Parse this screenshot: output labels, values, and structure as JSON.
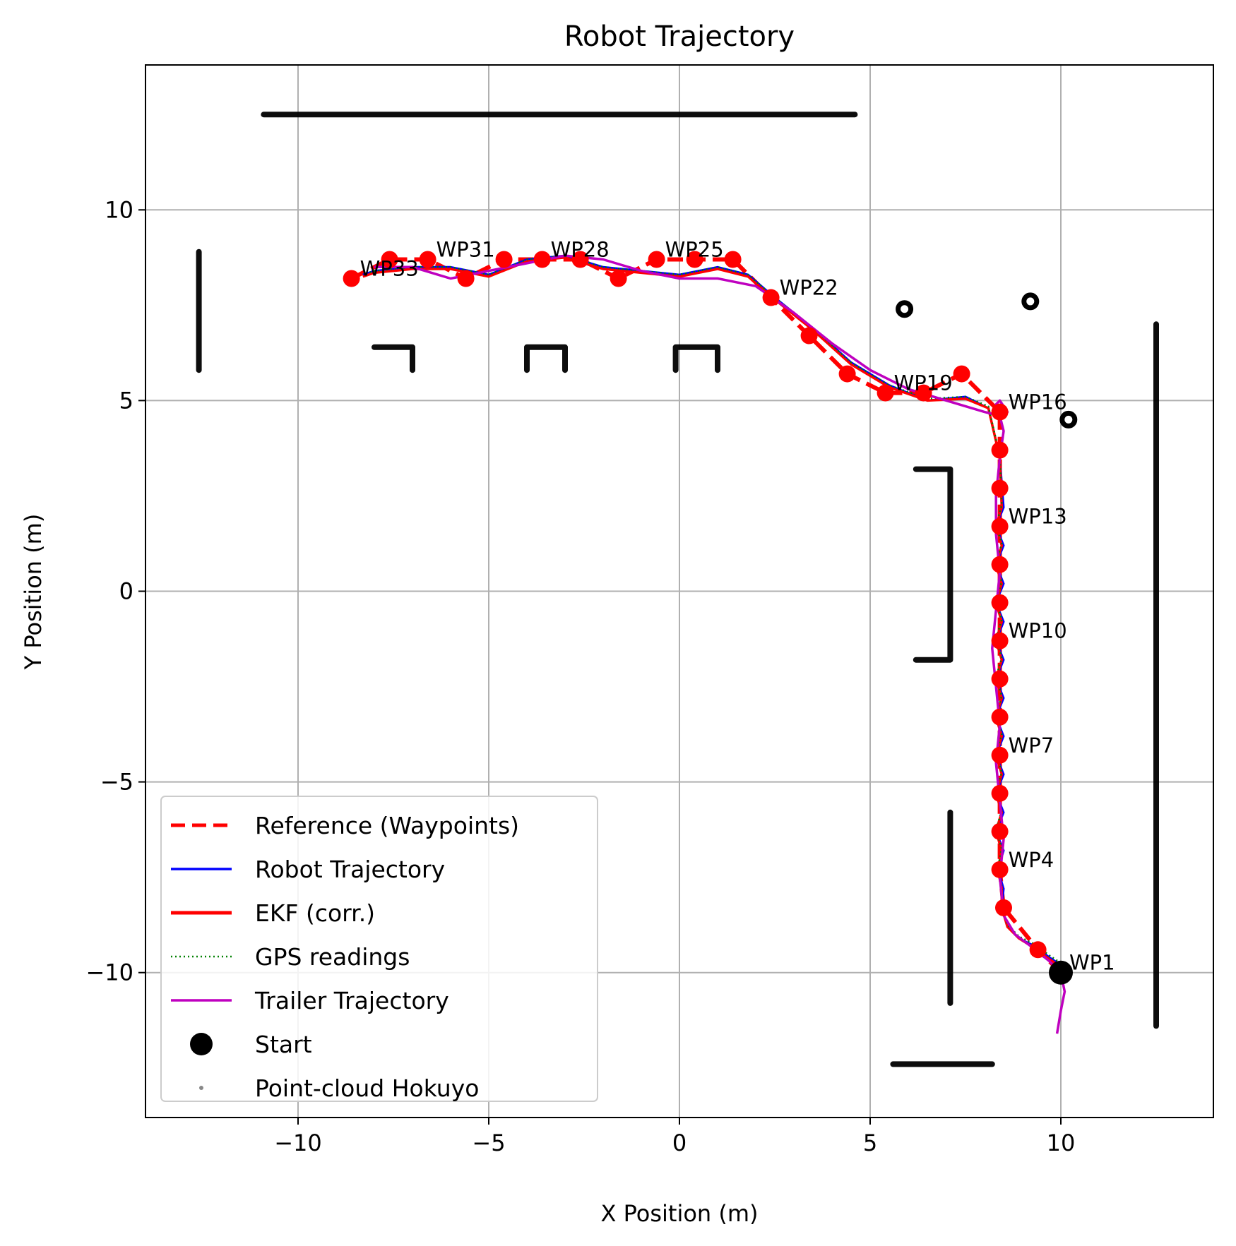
{
  "chart_data": {
    "type": "line",
    "title": "Robot Trajectory",
    "xlabel": "X Position (m)",
    "ylabel": "Y Position (m)",
    "xlim": [
      -14,
      14
    ],
    "ylim": [
      -13.8,
      13.8
    ],
    "xticks": [
      -10,
      -5,
      0,
      5,
      10
    ],
    "yticks": [
      -10,
      -5,
      0,
      5,
      10
    ],
    "xtick_labels": [
      "−10",
      "−5",
      "0",
      "5",
      "10"
    ],
    "ytick_labels": [
      "−10",
      "−5",
      "0",
      "5",
      "10"
    ],
    "grid": true,
    "legend_position": "lower-left",
    "colors": {
      "reference": "#ff0000",
      "robot": "#0000ff",
      "ekf": "#ff0000",
      "gps": "#008000",
      "trailer": "#bf00bf",
      "start": "#000000",
      "cloud": "#000000"
    },
    "waypoints": {
      "x": [
        10.0,
        9.4,
        8.5,
        8.4,
        8.4,
        8.4,
        8.4,
        8.4,
        8.4,
        8.4,
        8.4,
        8.4,
        8.4,
        8.4,
        8.4,
        8.4,
        7.4,
        6.4,
        5.4,
        4.4,
        3.4,
        2.4,
        1.4,
        0.4,
        -0.6,
        -1.6,
        -2.6,
        -3.6,
        -4.6,
        -5.6,
        -6.6,
        -7.6,
        -8.6
      ],
      "y": [
        -10.0,
        -9.4,
        -8.3,
        -7.3,
        -6.3,
        -5.3,
        -4.3,
        -3.3,
        -2.3,
        -1.3,
        -0.3,
        0.7,
        1.7,
        2.7,
        3.7,
        4.7,
        5.7,
        5.2,
        5.2,
        5.7,
        6.7,
        7.7,
        8.7,
        8.7,
        8.7,
        8.2,
        8.7,
        8.7,
        8.7,
        8.2,
        8.7,
        8.7,
        8.2
      ]
    },
    "waypoint_labels": [
      {
        "label": "WP1",
        "x": 10.0,
        "y": -10.0
      },
      {
        "label": "WP4",
        "x": 8.4,
        "y": -7.3
      },
      {
        "label": "WP7",
        "x": 8.4,
        "y": -4.3
      },
      {
        "label": "WP10",
        "x": 8.4,
        "y": -1.3
      },
      {
        "label": "WP13",
        "x": 8.4,
        "y": 1.7
      },
      {
        "label": "WP16",
        "x": 8.4,
        "y": 4.7
      },
      {
        "label": "WP19",
        "x": 5.4,
        "y": 5.2
      },
      {
        "label": "WP22",
        "x": 2.4,
        "y": 7.7
      },
      {
        "label": "WP25",
        "x": -0.6,
        "y": 8.7
      },
      {
        "label": "WP28",
        "x": -3.6,
        "y": 8.7
      },
      {
        "label": "WP31",
        "x": -6.6,
        "y": 8.7
      },
      {
        "label": "WP33",
        "x": -8.6,
        "y": 8.2
      }
    ],
    "series": [
      {
        "name": "Reference (Waypoints)",
        "style": "dashed"
      },
      {
        "name": "Robot Trajectory",
        "style": "solid",
        "x": [
          10.0,
          9.7,
          9.3,
          8.9,
          8.6,
          8.45,
          8.5,
          8.35,
          8.5,
          8.3,
          8.5,
          8.3,
          8.5,
          8.3,
          8.5,
          8.3,
          8.5,
          8.3,
          8.5,
          8.3,
          8.5,
          8.3,
          8.5,
          8.3,
          8.5,
          8.3,
          8.5,
          8.4,
          8.1,
          7.5,
          6.5,
          5.5,
          4.5,
          3.5,
          2.5,
          1.8,
          1.0,
          0.0,
          -1.0,
          -2.0,
          -3.0,
          -4.0,
          -5.0,
          -6.0,
          -7.0,
          -8.0,
          -8.3
        ],
        "y": [
          -9.8,
          -9.6,
          -9.3,
          -9.1,
          -8.8,
          -8.3,
          -7.8,
          -7.3,
          -6.8,
          -6.3,
          -5.8,
          -5.3,
          -4.8,
          -4.3,
          -3.8,
          -3.3,
          -2.8,
          -2.3,
          -1.8,
          -1.3,
          -0.8,
          -0.3,
          0.2,
          0.7,
          1.2,
          1.7,
          2.2,
          3.5,
          4.8,
          5.1,
          5.0,
          5.4,
          6.0,
          6.9,
          7.7,
          8.3,
          8.5,
          8.3,
          8.4,
          8.5,
          8.8,
          8.7,
          8.3,
          8.5,
          8.5,
          8.4,
          8.3
        ]
      },
      {
        "name": "EKF (corr.)",
        "style": "solid",
        "x": [
          10.0,
          9.7,
          9.3,
          8.9,
          8.6,
          8.45,
          8.45,
          8.35,
          8.45,
          8.3,
          8.45,
          8.3,
          8.45,
          8.3,
          8.45,
          8.3,
          8.45,
          8.3,
          8.45,
          8.3,
          8.45,
          8.3,
          8.45,
          8.3,
          8.45,
          8.3,
          8.45,
          8.4,
          8.1,
          7.5,
          6.5,
          5.5,
          4.5,
          3.5,
          2.5,
          1.8,
          1.0,
          0.0,
          -1.0,
          -2.0,
          -3.0,
          -4.0,
          -5.0,
          -6.0,
          -7.0,
          -8.0,
          -8.3
        ],
        "y": [
          -9.85,
          -9.65,
          -9.35,
          -9.1,
          -8.8,
          -8.3,
          -7.8,
          -7.3,
          -6.8,
          -6.3,
          -5.8,
          -5.3,
          -4.8,
          -4.3,
          -3.8,
          -3.3,
          -2.8,
          -2.3,
          -1.8,
          -1.3,
          -0.8,
          -0.3,
          0.2,
          0.7,
          1.2,
          1.7,
          2.2,
          3.5,
          4.8,
          5.05,
          5.0,
          5.35,
          5.95,
          6.85,
          7.65,
          8.25,
          8.45,
          8.25,
          8.35,
          8.45,
          8.75,
          8.65,
          8.25,
          8.45,
          8.45,
          8.35,
          8.25
        ]
      },
      {
        "name": "GPS readings",
        "style": "dotted",
        "x": [
          10.0,
          9.7,
          9.3,
          8.9,
          8.6,
          8.45,
          8.45,
          8.35,
          8.45,
          8.3,
          8.45,
          8.3,
          8.45,
          8.3,
          8.45,
          8.3,
          8.45,
          8.3,
          8.45,
          8.3,
          8.45,
          8.3,
          8.45,
          8.3,
          8.45,
          8.3,
          8.45,
          8.4,
          8.1,
          7.5,
          6.5,
          5.5,
          4.5,
          3.5,
          2.5,
          1.8,
          1.0,
          0.0,
          -1.0,
          -2.0,
          -3.0,
          -4.0,
          -5.0,
          -6.0,
          -7.0,
          -8.0,
          -8.3
        ],
        "y": [
          -9.75,
          -9.55,
          -9.25,
          -9.05,
          -8.75,
          -8.25,
          -7.75,
          -7.25,
          -6.75,
          -6.25,
          -5.75,
          -5.25,
          -4.75,
          -4.25,
          -3.75,
          -3.25,
          -2.75,
          -2.25,
          -1.75,
          -1.25,
          -0.75,
          -0.25,
          0.25,
          0.75,
          1.25,
          1.75,
          2.25,
          3.55,
          4.85,
          5.1,
          5.05,
          5.4,
          6.0,
          6.9,
          7.7,
          8.3,
          8.5,
          8.3,
          8.4,
          8.5,
          8.8,
          8.7,
          8.3,
          8.5,
          8.5,
          8.4,
          8.3
        ]
      },
      {
        "name": "Trailer Trajectory",
        "style": "solid",
        "x": [
          9.9,
          10.0,
          10.1,
          10.0,
          9.7,
          9.2,
          8.8,
          8.5,
          8.4,
          8.5,
          8.4,
          8.3,
          8.4,
          8.3,
          8.2,
          8.3,
          8.4,
          8.3,
          8.3,
          8.4,
          8.5,
          8.4,
          8.3,
          8.4,
          8.6,
          8.4,
          8.0,
          7.0,
          6.0,
          5.0,
          4.0,
          3.0,
          2.0,
          1.0,
          0.0,
          -1.0,
          -2.0,
          -3.0,
          -4.0,
          -5.0,
          -5.5,
          -6.0,
          -7.0,
          -8.0
        ],
        "y": [
          -11.6,
          -11.0,
          -10.5,
          -10.0,
          -9.7,
          -9.3,
          -9.0,
          -8.5,
          -7.5,
          -6.5,
          -5.5,
          -4.5,
          -3.5,
          -2.5,
          -1.5,
          -0.5,
          0.5,
          1.5,
          2.5,
          3.5,
          4.2,
          4.6,
          4.9,
          5.0,
          4.7,
          4.6,
          4.7,
          5.0,
          5.3,
          5.8,
          6.5,
          7.3,
          8.0,
          8.2,
          8.2,
          8.4,
          8.7,
          8.8,
          8.6,
          8.4,
          8.3,
          8.2,
          8.5,
          8.5
        ]
      },
      {
        "name": "Start",
        "style": "marker",
        "x": [
          10.0
        ],
        "y": [
          -10.0
        ]
      },
      {
        "name": "Point-cloud Hokuyo",
        "style": "scatter"
      }
    ],
    "point_cloud_segments": [
      {
        "x": [
          -10.9,
          4.6
        ],
        "y": [
          12.5,
          12.5
        ]
      },
      {
        "x": [
          -12.6,
          -12.6
        ],
        "y": [
          5.8,
          8.9
        ]
      },
      {
        "x": [
          -8.0,
          -7.0,
          -7.0
        ],
        "y": [
          6.4,
          6.4,
          5.8
        ]
      },
      {
        "x": [
          -4.0,
          -4.0,
          -3.0,
          -3.0
        ],
        "y": [
          5.8,
          6.4,
          6.4,
          5.8
        ]
      },
      {
        "x": [
          -0.1,
          -0.1,
          1.0,
          1.0
        ],
        "y": [
          5.8,
          6.4,
          6.4,
          5.8
        ]
      },
      {
        "x": [
          6.2,
          7.1,
          7.1,
          6.2
        ],
        "y": [
          3.2,
          3.2,
          -1.8,
          -1.8
        ]
      },
      {
        "x": [
          7.1,
          7.1
        ],
        "y": [
          -5.8,
          -10.8
        ]
      },
      {
        "x": [
          12.5,
          12.5
        ],
        "y": [
          7.0,
          -11.4
        ]
      },
      {
        "x": [
          5.6,
          8.2
        ],
        "y": [
          -12.4,
          -12.4
        ]
      }
    ],
    "point_cloud_blobs": [
      {
        "x": 5.9,
        "y": 7.4
      },
      {
        "x": 9.2,
        "y": 7.6
      },
      {
        "x": 10.2,
        "y": 4.5
      }
    ]
  }
}
